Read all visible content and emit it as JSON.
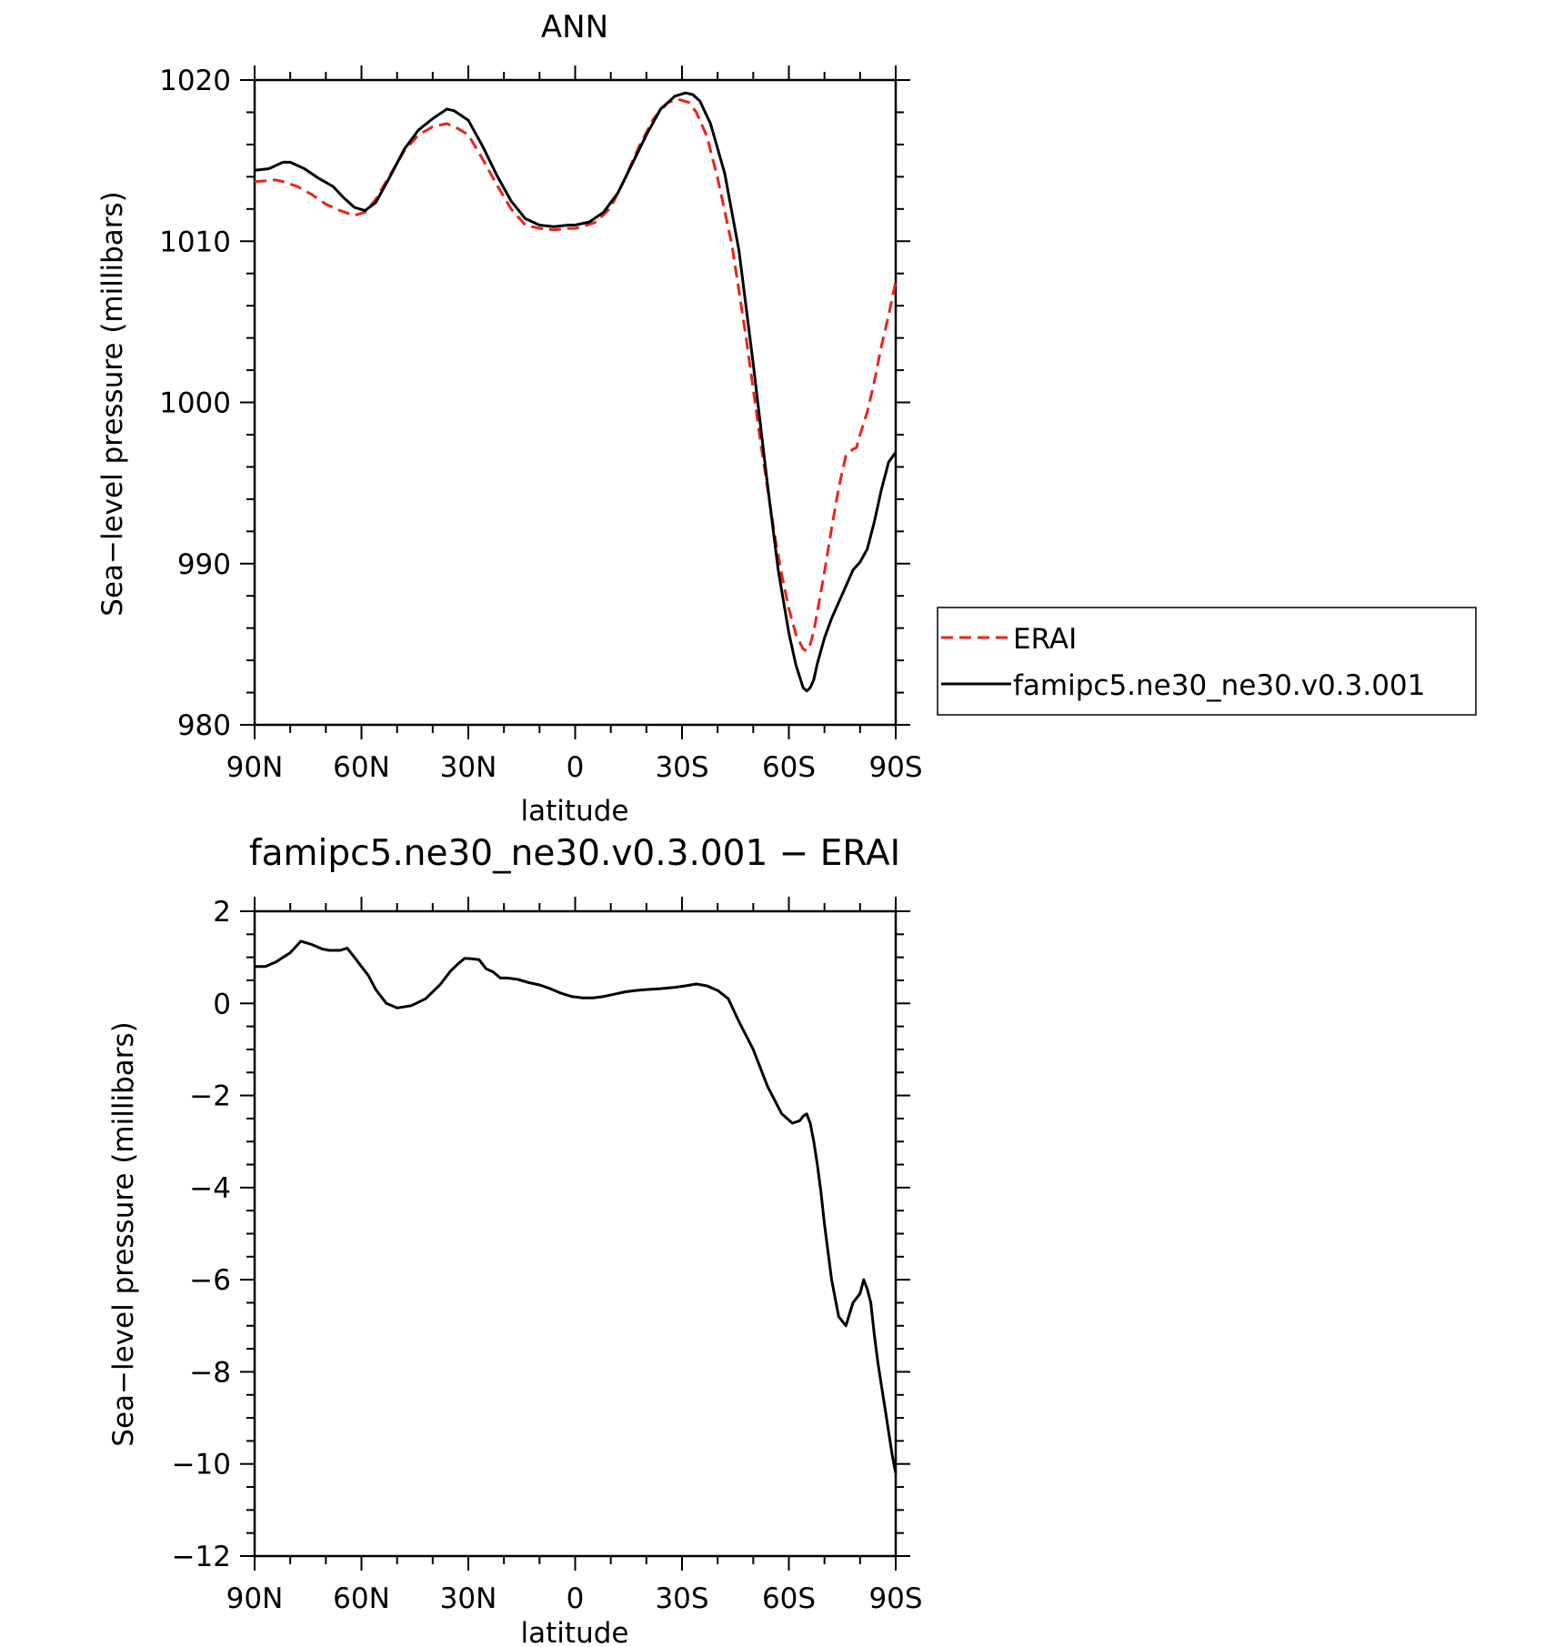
{
  "chart_data": [
    {
      "type": "line",
      "title": "ANN",
      "xlabel": "latitude",
      "ylabel": "Sea−level pressure (millibars)",
      "xlim": [
        90,
        -90
      ],
      "ylim": [
        980,
        1020
      ],
      "xticks": [
        90,
        60,
        30,
        0,
        -30,
        -60,
        -90
      ],
      "xtick_labels": [
        "90N",
        "60N",
        "30N",
        "0",
        "30S",
        "60S",
        "90S"
      ],
      "yticks": [
        980,
        990,
        1000,
        1010,
        1020
      ],
      "ytick_labels": [
        "980",
        "990",
        "1000",
        "1010",
        "1020"
      ],
      "grid": false,
      "legend": {
        "placement": "right",
        "entries": [
          {
            "label": "ERAI",
            "color": "#e8241f",
            "dash": "dashed"
          },
          {
            "label": "famipc5.ne30_ne30.v0.3.001",
            "color": "#000000",
            "dash": "solid"
          }
        ]
      },
      "series": [
        {
          "name": "ERAI",
          "color": "#e8241f",
          "dash": "dashed",
          "x": [
            90,
            84,
            82,
            78,
            74,
            70,
            66,
            62,
            59,
            56,
            52,
            48,
            44,
            40,
            36,
            33,
            30,
            26,
            22,
            18,
            14,
            10,
            6,
            2,
            0,
            -2,
            -6,
            -10,
            -14,
            -18,
            -22,
            -26,
            -29,
            -32,
            -34,
            -37,
            -40,
            -44,
            -48,
            -52,
            -56,
            -58,
            -60,
            -62,
            -64,
            -65,
            -66,
            -67,
            -68,
            -70,
            -72,
            -74,
            -76,
            -78,
            -79,
            -80,
            -82,
            -84,
            -86,
            -88,
            -90
          ],
          "y": [
            1013.7,
            1013.8,
            1013.7,
            1013.4,
            1012.9,
            1012.3,
            1011.9,
            1011.6,
            1011.8,
            1012.6,
            1014.1,
            1015.6,
            1016.6,
            1017.1,
            1017.3,
            1017.0,
            1016.6,
            1015.1,
            1013.5,
            1012.0,
            1011.0,
            1010.8,
            1010.7,
            1010.8,
            1010.8,
            1010.9,
            1011.2,
            1012.1,
            1013.9,
            1015.9,
            1017.6,
            1018.6,
            1018.8,
            1018.6,
            1018.0,
            1016.5,
            1013.9,
            1009.8,
            1004.0,
            997.6,
            991.8,
            989.3,
            987.2,
            985.6,
            984.7,
            984.6,
            985.0,
            985.8,
            987.0,
            989.5,
            992.2,
            994.7,
            996.7,
            997.1,
            997.2,
            998.0,
            999.4,
            1001.3,
            1003.5,
            1005.4,
            1007.5
          ]
        },
        {
          "name": "famipc5.ne30_ne30.v0.3.001",
          "color": "#000000",
          "dash": "solid",
          "x": [
            90,
            86,
            84,
            82,
            80,
            76,
            72,
            68,
            65,
            62,
            59,
            56,
            52,
            48,
            44,
            40,
            36,
            34,
            32,
            30,
            26,
            22,
            18,
            14,
            10,
            6,
            2,
            0,
            -4,
            -8,
            -12,
            -16,
            -20,
            -24,
            -28,
            -31,
            -33,
            -35,
            -38,
            -42,
            -46,
            -50,
            -54,
            -57,
            -60,
            -62,
            -64,
            -65,
            -66,
            -67,
            -68,
            -70,
            -72,
            -74,
            -76,
            -78,
            -80,
            -82,
            -84,
            -86,
            -88,
            -90
          ],
          "y": [
            1014.4,
            1014.5,
            1014.7,
            1014.9,
            1014.9,
            1014.5,
            1013.9,
            1013.4,
            1012.7,
            1012.1,
            1011.9,
            1012.4,
            1014.0,
            1015.7,
            1016.9,
            1017.6,
            1018.2,
            1018.1,
            1017.8,
            1017.5,
            1015.9,
            1014.1,
            1012.5,
            1011.4,
            1011.0,
            1010.9,
            1011.0,
            1011.0,
            1011.2,
            1011.8,
            1013.0,
            1014.8,
            1016.6,
            1018.2,
            1019.0,
            1019.2,
            1019.1,
            1018.7,
            1017.3,
            1014.2,
            1009.4,
            1002.4,
            994.9,
            989.6,
            985.7,
            983.7,
            982.3,
            982.1,
            982.3,
            982.8,
            983.8,
            985.4,
            986.6,
            987.6,
            988.6,
            989.6,
            990.1,
            990.9,
            992.6,
            994.6,
            996.3,
            996.9
          ]
        }
      ]
    },
    {
      "type": "line",
      "title": "famipc5.ne30_ne30.v0.3.001 − ERAI",
      "xlabel": "latitude",
      "ylabel": "Sea−level pressure (millibars)",
      "xlim": [
        90,
        -90
      ],
      "ylim": [
        -12,
        2
      ],
      "xticks": [
        90,
        60,
        30,
        0,
        -30,
        -60,
        -90
      ],
      "xtick_labels": [
        "90N",
        "60N",
        "30N",
        "0",
        "30S",
        "60S",
        "90S"
      ],
      "yticks": [
        -12,
        -10,
        -8,
        -6,
        -4,
        -2,
        0,
        2
      ],
      "ytick_labels": [
        "−12",
        "−10",
        "−8",
        "−6",
        "−4",
        "−2",
        "0",
        "2"
      ],
      "grid": false,
      "series": [
        {
          "color": "#000000",
          "dash": "solid",
          "x": [
            90,
            87,
            84,
            82,
            80,
            77,
            74,
            71,
            69,
            66,
            64,
            62,
            60,
            58,
            56,
            53,
            50,
            46,
            42,
            38,
            37,
            35,
            33,
            31,
            29,
            27,
            25,
            23,
            21,
            19,
            16,
            13,
            10,
            7,
            4,
            1,
            -2,
            -5,
            -8,
            -11,
            -14,
            -17,
            -20,
            -24,
            -28,
            -31,
            -34,
            -37,
            -40,
            -43,
            -46,
            -50,
            -54,
            -58,
            -61,
            -63,
            -64,
            -65,
            -66,
            -67,
            -68,
            -69,
            -70,
            -72,
            -74,
            -76,
            -78,
            -80,
            -81,
            -82,
            -83,
            -84,
            -85,
            -86,
            -87,
            -88,
            -89,
            -90
          ],
          "y": [
            0.8,
            0.8,
            0.9,
            1.0,
            1.1,
            1.35,
            1.28,
            1.18,
            1.15,
            1.15,
            1.2,
            1.0,
            0.8,
            0.6,
            0.3,
            0.0,
            -0.1,
            -0.05,
            0.1,
            0.4,
            0.5,
            0.7,
            0.85,
            0.98,
            0.97,
            0.95,
            0.75,
            0.68,
            0.55,
            0.55,
            0.52,
            0.45,
            0.4,
            0.32,
            0.22,
            0.15,
            0.12,
            0.12,
            0.15,
            0.2,
            0.25,
            0.28,
            0.3,
            0.32,
            0.35,
            0.38,
            0.42,
            0.38,
            0.28,
            0.1,
            -0.4,
            -1.0,
            -1.8,
            -2.4,
            -2.6,
            -2.55,
            -2.45,
            -2.4,
            -2.6,
            -3.0,
            -3.5,
            -4.1,
            -4.8,
            -6.0,
            -6.8,
            -7.0,
            -6.5,
            -6.3,
            -6.0,
            -6.2,
            -6.5,
            -7.2,
            -7.8,
            -8.3,
            -8.8,
            -9.3,
            -9.8,
            -10.2
          ]
        }
      ]
    }
  ]
}
